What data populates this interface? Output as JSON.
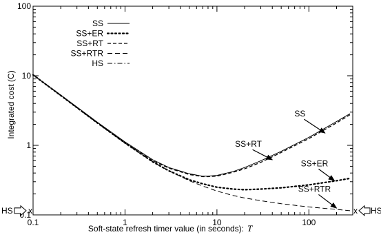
{
  "chart_data": {
    "type": "line",
    "xscale": "log",
    "yscale": "log",
    "xlim": [
      0.1,
      300
    ],
    "ylim": [
      0.1,
      100
    ],
    "xlabel": "Soft-state refresh timer value (in seconds):",
    "xlabel_symbol": "T",
    "ylabel": "Integrated cost (C)",
    "x_ticks": [
      0.1,
      1,
      10,
      100
    ],
    "x_tick_labels": [
      "0.1",
      "1",
      "10",
      "100"
    ],
    "y_ticks": [
      0.1,
      1,
      10,
      100
    ],
    "y_tick_labels": [
      "0.1",
      "1",
      "10",
      "100"
    ],
    "legend_position": "top-left",
    "grid": false,
    "series": [
      {
        "name": "SS",
        "style": "solid",
        "x": [
          0.1,
          0.2,
          0.5,
          1,
          2,
          3,
          5,
          7,
          8,
          10,
          15,
          20,
          30,
          50,
          100,
          200,
          280
        ],
        "y": [
          10.3,
          5.3,
          2.15,
          1.12,
          0.62,
          0.48,
          0.39,
          0.36,
          0.36,
          0.37,
          0.42,
          0.48,
          0.6,
          0.82,
          1.3,
          2.2,
          2.85
        ]
      },
      {
        "name": "SS+ER",
        "style": "dotted",
        "x": [
          0.1,
          0.2,
          0.5,
          1,
          2,
          3,
          5,
          7,
          10,
          15,
          20,
          30,
          50,
          100,
          200,
          280
        ],
        "y": [
          10.3,
          5.2,
          2.1,
          1.08,
          0.58,
          0.43,
          0.32,
          0.28,
          0.25,
          0.235,
          0.23,
          0.235,
          0.245,
          0.27,
          0.31,
          0.335
        ]
      },
      {
        "name": "SS+RT",
        "style": "dashed",
        "x": [
          0.1,
          0.2,
          0.5,
          1,
          2,
          3,
          5,
          7,
          8,
          10,
          15,
          20,
          30,
          50,
          100,
          200,
          280
        ],
        "y": [
          10.3,
          5.2,
          2.1,
          1.08,
          0.6,
          0.47,
          0.38,
          0.355,
          0.355,
          0.36,
          0.41,
          0.46,
          0.57,
          0.79,
          1.25,
          2.1,
          2.75
        ]
      },
      {
        "name": "SS+RTR",
        "style": "longdash",
        "x": [
          0.1,
          0.2,
          0.5,
          1,
          2,
          3,
          5,
          7,
          10,
          15,
          20,
          30,
          50,
          100,
          200,
          280
        ],
        "y": [
          10.3,
          5.2,
          2.1,
          1.08,
          0.58,
          0.43,
          0.31,
          0.26,
          0.22,
          0.19,
          0.175,
          0.16,
          0.145,
          0.13,
          0.12,
          0.115
        ]
      },
      {
        "name": "HS",
        "style": "dashdot",
        "x": [],
        "y": []
      }
    ],
    "annotations": [
      {
        "text": "SS",
        "x": 80,
        "y": 2.6,
        "arrow_to": [
          150,
          1.5
        ]
      },
      {
        "text": "SS+RT",
        "x": 22,
        "y": 0.95,
        "arrow_to": [
          40,
          0.62
        ]
      },
      {
        "text": "SS+ER",
        "x": 115,
        "y": 0.5,
        "arrow_to": [
          190,
          0.31
        ]
      },
      {
        "text": "SS+RTR",
        "x": 115,
        "y": 0.215,
        "arrow_to": [
          200,
          0.125
        ]
      }
    ],
    "hs_markers": {
      "left_label": "HS",
      "right_label": "HS",
      "marker": "x",
      "y": 0.115
    }
  }
}
